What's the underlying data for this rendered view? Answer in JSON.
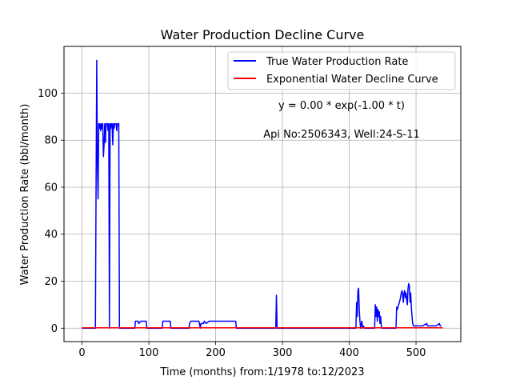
{
  "chart_data": {
    "type": "line",
    "title": "Water Production Decline Curve",
    "xlabel": "Time (months) from:1/1978 to:12/2023",
    "ylabel": "Water Production Rate (bbl/month)",
    "xlim": [
      -27,
      567
    ],
    "ylim": [
      -5.7,
      119.9
    ],
    "xticks": [
      0,
      100,
      200,
      300,
      400,
      500
    ],
    "yticks": [
      0,
      20,
      40,
      60,
      80,
      100
    ],
    "grid": true,
    "legend_position": "top-right",
    "annotations": [
      "y = 0.00 * exp(-1.00 * t)",
      "Api No:2506343, Well:24-S-11"
    ],
    "series": [
      {
        "name": "True Water Production Rate",
        "color": "#0000ff",
        "points": [
          [
            0,
            0
          ],
          [
            20,
            0
          ],
          [
            21,
            60
          ],
          [
            22,
            114
          ],
          [
            23,
            70
          ],
          [
            24,
            55
          ],
          [
            25,
            87
          ],
          [
            26,
            85
          ],
          [
            27,
            87
          ],
          [
            28,
            84
          ],
          [
            29,
            87
          ],
          [
            30,
            85
          ],
          [
            31,
            87
          ],
          [
            32,
            73
          ],
          [
            33,
            78
          ],
          [
            34,
            87
          ],
          [
            35,
            79
          ],
          [
            36,
            87
          ],
          [
            37,
            87
          ],
          [
            38,
            87
          ],
          [
            39,
            84
          ],
          [
            40,
            87
          ],
          [
            41,
            0
          ],
          [
            42,
            87
          ],
          [
            43,
            85
          ],
          [
            44,
            87
          ],
          [
            45,
            87
          ],
          [
            46,
            78
          ],
          [
            47,
            87
          ],
          [
            48,
            85
          ],
          [
            49,
            87
          ],
          [
            50,
            87
          ],
          [
            51,
            87
          ],
          [
            52,
            84
          ],
          [
            53,
            87
          ],
          [
            55,
            87
          ],
          [
            56,
            0
          ],
          [
            79,
            0
          ],
          [
            80,
            3
          ],
          [
            84,
            3
          ],
          [
            85,
            2
          ],
          [
            88,
            3
          ],
          [
            96,
            3
          ],
          [
            97,
            0
          ],
          [
            120,
            0
          ],
          [
            121,
            3
          ],
          [
            132,
            3
          ],
          [
            133,
            0
          ],
          [
            160,
            0
          ],
          [
            161,
            2
          ],
          [
            163,
            3
          ],
          [
            175,
            3
          ],
          [
            177,
            0
          ],
          [
            178,
            2
          ],
          [
            182,
            2
          ],
          [
            183,
            3
          ],
          [
            186,
            2
          ],
          [
            190,
            3
          ],
          [
            230,
            3
          ],
          [
            231,
            0
          ],
          [
            290,
            0
          ],
          [
            291,
            14
          ],
          [
            292,
            0
          ],
          [
            410,
            0
          ],
          [
            411,
            11
          ],
          [
            412,
            5
          ],
          [
            413,
            16
          ],
          [
            414,
            17
          ],
          [
            415,
            8
          ],
          [
            416,
            3
          ],
          [
            417,
            0
          ],
          [
            418,
            2
          ],
          [
            419,
            3
          ],
          [
            420,
            0
          ],
          [
            421,
            1
          ],
          [
            423,
            0
          ],
          [
            438,
            0
          ],
          [
            439,
            10
          ],
          [
            440,
            5
          ],
          [
            441,
            9
          ],
          [
            442,
            3
          ],
          [
            443,
            8
          ],
          [
            444,
            5
          ],
          [
            445,
            7
          ],
          [
            446,
            2
          ],
          [
            447,
            5
          ],
          [
            448,
            1
          ],
          [
            449,
            0
          ],
          [
            470,
            0
          ],
          [
            471,
            9
          ],
          [
            472,
            8
          ],
          [
            474,
            10
          ],
          [
            476,
            12
          ],
          [
            478,
            15
          ],
          [
            479,
            16
          ],
          [
            480,
            14
          ],
          [
            481,
            11
          ],
          [
            482,
            15
          ],
          [
            483,
            16
          ],
          [
            484,
            13
          ],
          [
            485,
            15
          ],
          [
            486,
            12
          ],
          [
            487,
            10
          ],
          [
            488,
            17
          ],
          [
            489,
            19
          ],
          [
            490,
            18
          ],
          [
            491,
            11
          ],
          [
            492,
            15
          ],
          [
            493,
            9
          ],
          [
            494,
            5
          ],
          [
            495,
            2
          ],
          [
            496,
            1
          ],
          [
            500,
            1
          ],
          [
            510,
            1
          ],
          [
            516,
            2
          ],
          [
            517,
            1
          ],
          [
            530,
            1
          ],
          [
            535,
            2
          ],
          [
            536,
            1
          ],
          [
            538,
            1
          ]
        ]
      },
      {
        "name": "Exponential Water Decline Curve",
        "color": "#ff0000",
        "points": [
          [
            0,
            0.15
          ],
          [
            540,
            0.15
          ]
        ]
      }
    ]
  }
}
